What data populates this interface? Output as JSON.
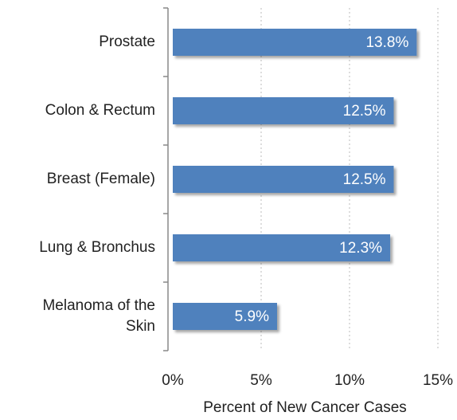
{
  "chart_data": {
    "type": "bar",
    "orientation": "horizontal",
    "categories": [
      "Prostate",
      "Colon & Rectum",
      "Breast (Female)",
      "Lung & Bronchus",
      "Melanoma of the Skin"
    ],
    "values": [
      13.8,
      12.5,
      12.5,
      12.3,
      5.9
    ],
    "value_labels": [
      "13.8%",
      "12.5%",
      "12.5%",
      "12.3%",
      "5.9%"
    ],
    "color": "#4f81bd",
    "xlim": [
      0,
      15
    ],
    "xticks": [
      {
        "value": 0,
        "label": "0%"
      },
      {
        "value": 5,
        "label": "5%"
      },
      {
        "value": 10,
        "label": "10%"
      },
      {
        "value": 15,
        "label": "15%"
      }
    ],
    "x_label": "Percent of New Cancer Cases",
    "grid": true
  }
}
